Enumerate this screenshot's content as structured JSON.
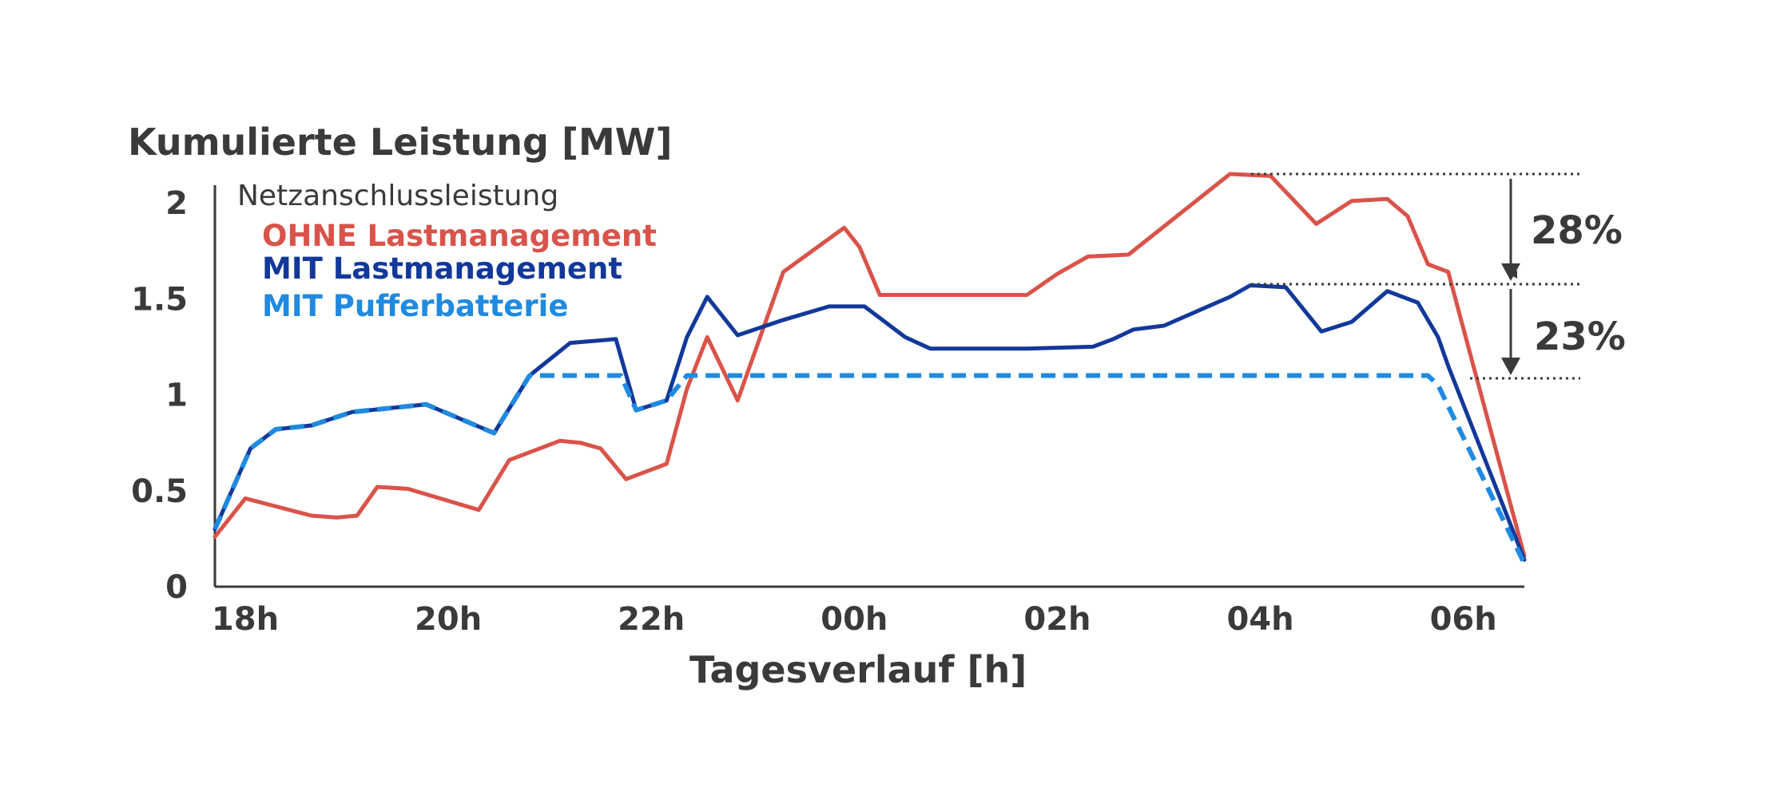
{
  "chart_data": {
    "type": "line",
    "ylabel": "Kumulierte Leistung [MW]",
    "xlabel": "Tagesverlauf [h]",
    "xlim": [
      0,
      12.9
    ],
    "ylim": [
      0,
      2.15
    ],
    "xticks": [
      {
        "x": 0,
        "label": "18h"
      },
      {
        "x": 2,
        "label": "20h"
      },
      {
        "x": 4,
        "label": "22h"
      },
      {
        "x": 6,
        "label": "00h"
      },
      {
        "x": 8,
        "label": "02h"
      },
      {
        "x": 10,
        "label": "04h"
      },
      {
        "x": 12,
        "label": "06h"
      }
    ],
    "yticks": [
      {
        "y": 0,
        "label": "0"
      },
      {
        "y": 0.5,
        "label": "0.5"
      },
      {
        "y": 1,
        "label": "1"
      },
      {
        "y": 1.5,
        "label": "1.5"
      },
      {
        "y": 2,
        "label": "2"
      }
    ],
    "grid": false,
    "legend": {
      "title": "Netzanschlussleistung",
      "placement": "top-left"
    },
    "series": [
      {
        "name": "OHNE Lastmanagement",
        "color": "#d9534a",
        "style": "solid",
        "x": [
          0,
          0.3,
          0.95,
          1.2,
          1.4,
          1.6,
          1.9,
          2.6,
          2.9,
          3.4,
          3.6,
          3.8,
          4.05,
          4.45,
          4.65,
          4.85,
          5.15,
          5.6,
          6.2,
          6.35,
          6.55,
          7,
          8,
          8.3,
          8.6,
          9,
          10,
          10.4,
          10.85,
          11.2,
          11.55,
          11.75,
          11.95,
          12.15,
          12.9
        ],
        "y": [
          0.26,
          0.46,
          0.37,
          0.36,
          0.37,
          0.52,
          0.51,
          0.4,
          0.66,
          0.76,
          0.75,
          0.72,
          0.56,
          0.64,
          1.03,
          1.3,
          0.97,
          1.64,
          1.87,
          1.77,
          1.52,
          1.52,
          1.52,
          1.63,
          1.72,
          1.73,
          2.15,
          2.14,
          1.89,
          2.01,
          2.02,
          1.93,
          1.68,
          1.64,
          0.16
        ]
      },
      {
        "name": "MIT Lastmanagement",
        "color": "#12389a",
        "style": "solid",
        "x": [
          0,
          0.35,
          0.6,
          0.95,
          1.35,
          2.08,
          2.75,
          3.1,
          3.5,
          3.95,
          4.15,
          4.45,
          4.65,
          4.85,
          5.15,
          5.6,
          6.05,
          6.4,
          6.8,
          7.05,
          8,
          8.65,
          8.85,
          9.05,
          9.35,
          10,
          10.2,
          10.55,
          10.9,
          11.2,
          11.55,
          11.85,
          12.05,
          12.15,
          12.9
        ],
        "y": [
          0.3,
          0.72,
          0.82,
          0.84,
          0.91,
          0.95,
          0.8,
          1.1,
          1.27,
          1.29,
          0.92,
          0.97,
          1.3,
          1.51,
          1.31,
          1.39,
          1.46,
          1.46,
          1.3,
          1.24,
          1.24,
          1.25,
          1.29,
          1.34,
          1.36,
          1.51,
          1.57,
          1.56,
          1.33,
          1.38,
          1.54,
          1.48,
          1.3,
          1.15,
          0.14
        ]
      },
      {
        "name": "MIT Pufferbatterie",
        "color": "#1f8ae0",
        "style": "dashed",
        "x": [
          0,
          0.35,
          0.6,
          0.95,
          1.35,
          2.08,
          2.75,
          3.1,
          4.0,
          4.15,
          4.45,
          4.65,
          11.95,
          12.05,
          12.9
        ],
        "y": [
          0.3,
          0.72,
          0.82,
          0.84,
          0.91,
          0.95,
          0.8,
          1.1,
          1.1,
          0.92,
          0.97,
          1.1,
          1.1,
          1.05,
          0.12
        ]
      }
    ],
    "annotations": [
      {
        "label": "28%",
        "from_y": 2.15,
        "to_y": 1.61
      },
      {
        "label": "23%",
        "from_y": 1.61,
        "to_y": 1.1
      }
    ]
  }
}
